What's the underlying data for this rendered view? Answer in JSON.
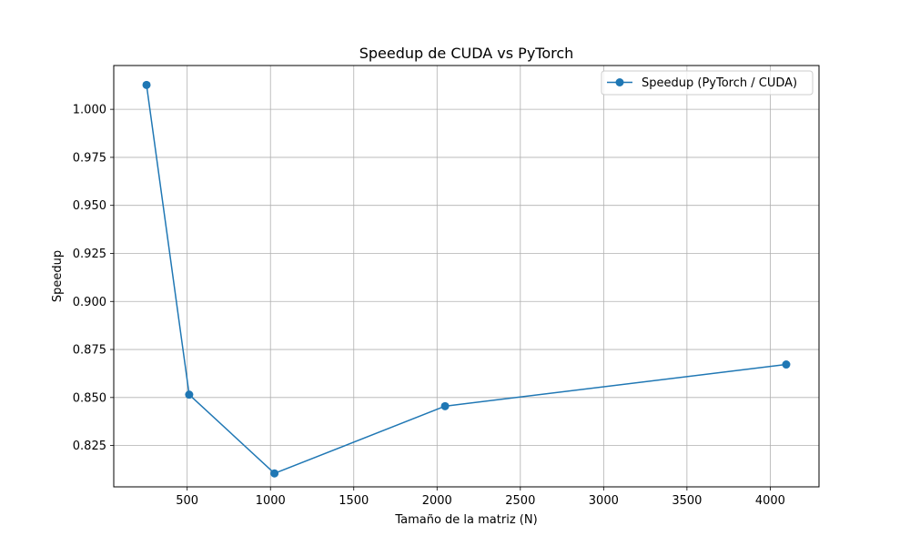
{
  "chart_data": {
    "type": "line",
    "title": "Speedup de CUDA vs PyTorch",
    "xlabel": "Tamaño de la matriz (N)",
    "ylabel": "Speedup",
    "xlim": [
      59.2,
      4292.8
    ],
    "ylim": [
      0.8035,
      1.0228
    ],
    "xticks": [
      500,
      1000,
      1500,
      2000,
      2500,
      3000,
      3500,
      4000
    ],
    "xtick_labels": [
      "500",
      "1000",
      "1500",
      "2000",
      "2500",
      "3000",
      "3500",
      "4000"
    ],
    "yticks": [
      0.825,
      0.85,
      0.875,
      0.9,
      0.925,
      0.95,
      0.975,
      1.0
    ],
    "ytick_labels": [
      "0.825",
      "0.850",
      "0.875",
      "0.900",
      "0.925",
      "0.950",
      "0.975",
      "1.000"
    ],
    "grid": true,
    "legend_position": "top-right",
    "series": [
      {
        "name": "Speedup (PyTorch / CUDA)",
        "color": "#1f77b4",
        "marker": "circle",
        "x": [
          256,
          512,
          1024,
          2048,
          4096
        ],
        "y": [
          1.0127,
          0.8515,
          0.8105,
          0.8455,
          0.8672
        ]
      }
    ]
  }
}
